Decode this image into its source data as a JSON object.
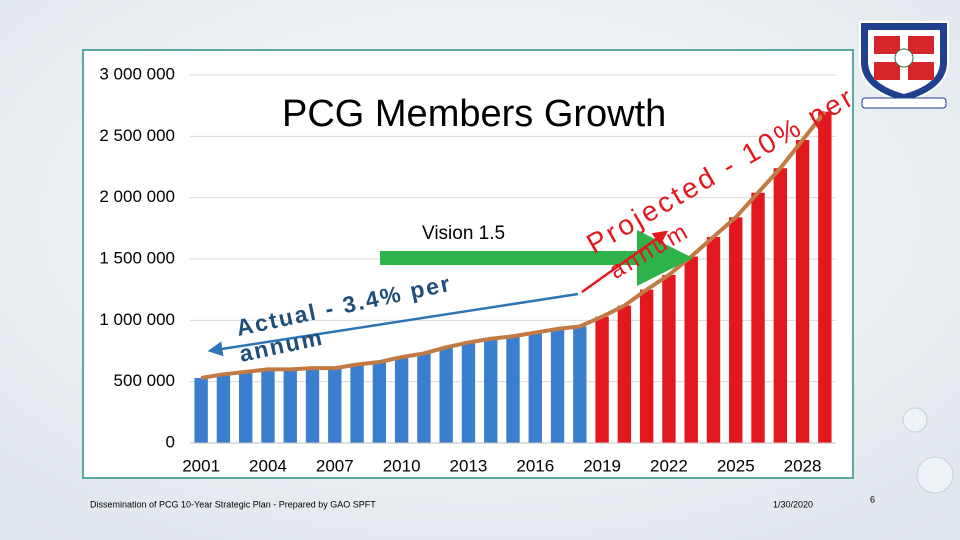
{
  "chart_data": {
    "type": "bar",
    "title": "PCG Members Growth",
    "categories": [
      "2001",
      null,
      null,
      "2004",
      null,
      null,
      "2007",
      null,
      null,
      "2010",
      null,
      null,
      "2013",
      null,
      null,
      "2016",
      null,
      null,
      "2019",
      null,
      null,
      "2022",
      null,
      null,
      "2025",
      null,
      null,
      "2028",
      null
    ],
    "series": [
      {
        "name": "Actual",
        "color": "#3a7fcf",
        "values": [
          530000,
          560000,
          580000,
          600000,
          600000,
          610000,
          610000,
          640000,
          660000,
          700000,
          730000,
          780000,
          820000,
          850000,
          870000,
          900000,
          930000,
          950000,
          null,
          null,
          null,
          null,
          null,
          null,
          null,
          null,
          null,
          null,
          null
        ]
      },
      {
        "name": "Projected",
        "color": "#e3171e",
        "values": [
          null,
          null,
          null,
          null,
          null,
          null,
          null,
          null,
          null,
          null,
          null,
          null,
          null,
          null,
          null,
          null,
          null,
          null,
          1030000,
          1120000,
          1250000,
          1370000,
          1520000,
          1680000,
          1840000,
          2040000,
          2240000,
          2470000,
          2700000
        ]
      }
    ],
    "line_color": "#c27a45",
    "ylim": [
      0,
      3000000
    ],
    "yticks": [
      0,
      {
        "value": 500000,
        "label": "500 000"
      },
      {
        "value": 1000000,
        "label": "1 000 000"
      },
      {
        "value": 1500000,
        "label": "1 500 000"
      },
      {
        "value": 2000000,
        "label": "2 000 000"
      },
      {
        "value": 2500000,
        "label": "2 500 000"
      },
      {
        "value": 3000000,
        "label": "3 000 000"
      }
    ],
    "grid": true,
    "annotations": [
      "Vision 1.5",
      "Actual - 3.4% per",
      "annum",
      "Projected - 10% per",
      "annum"
    ]
  },
  "footer": {
    "text": "Dissemination of PCG 10-Year Strategic Plan - Prepared by GAO SPFT",
    "date": "1/30/2020",
    "page": "6"
  }
}
